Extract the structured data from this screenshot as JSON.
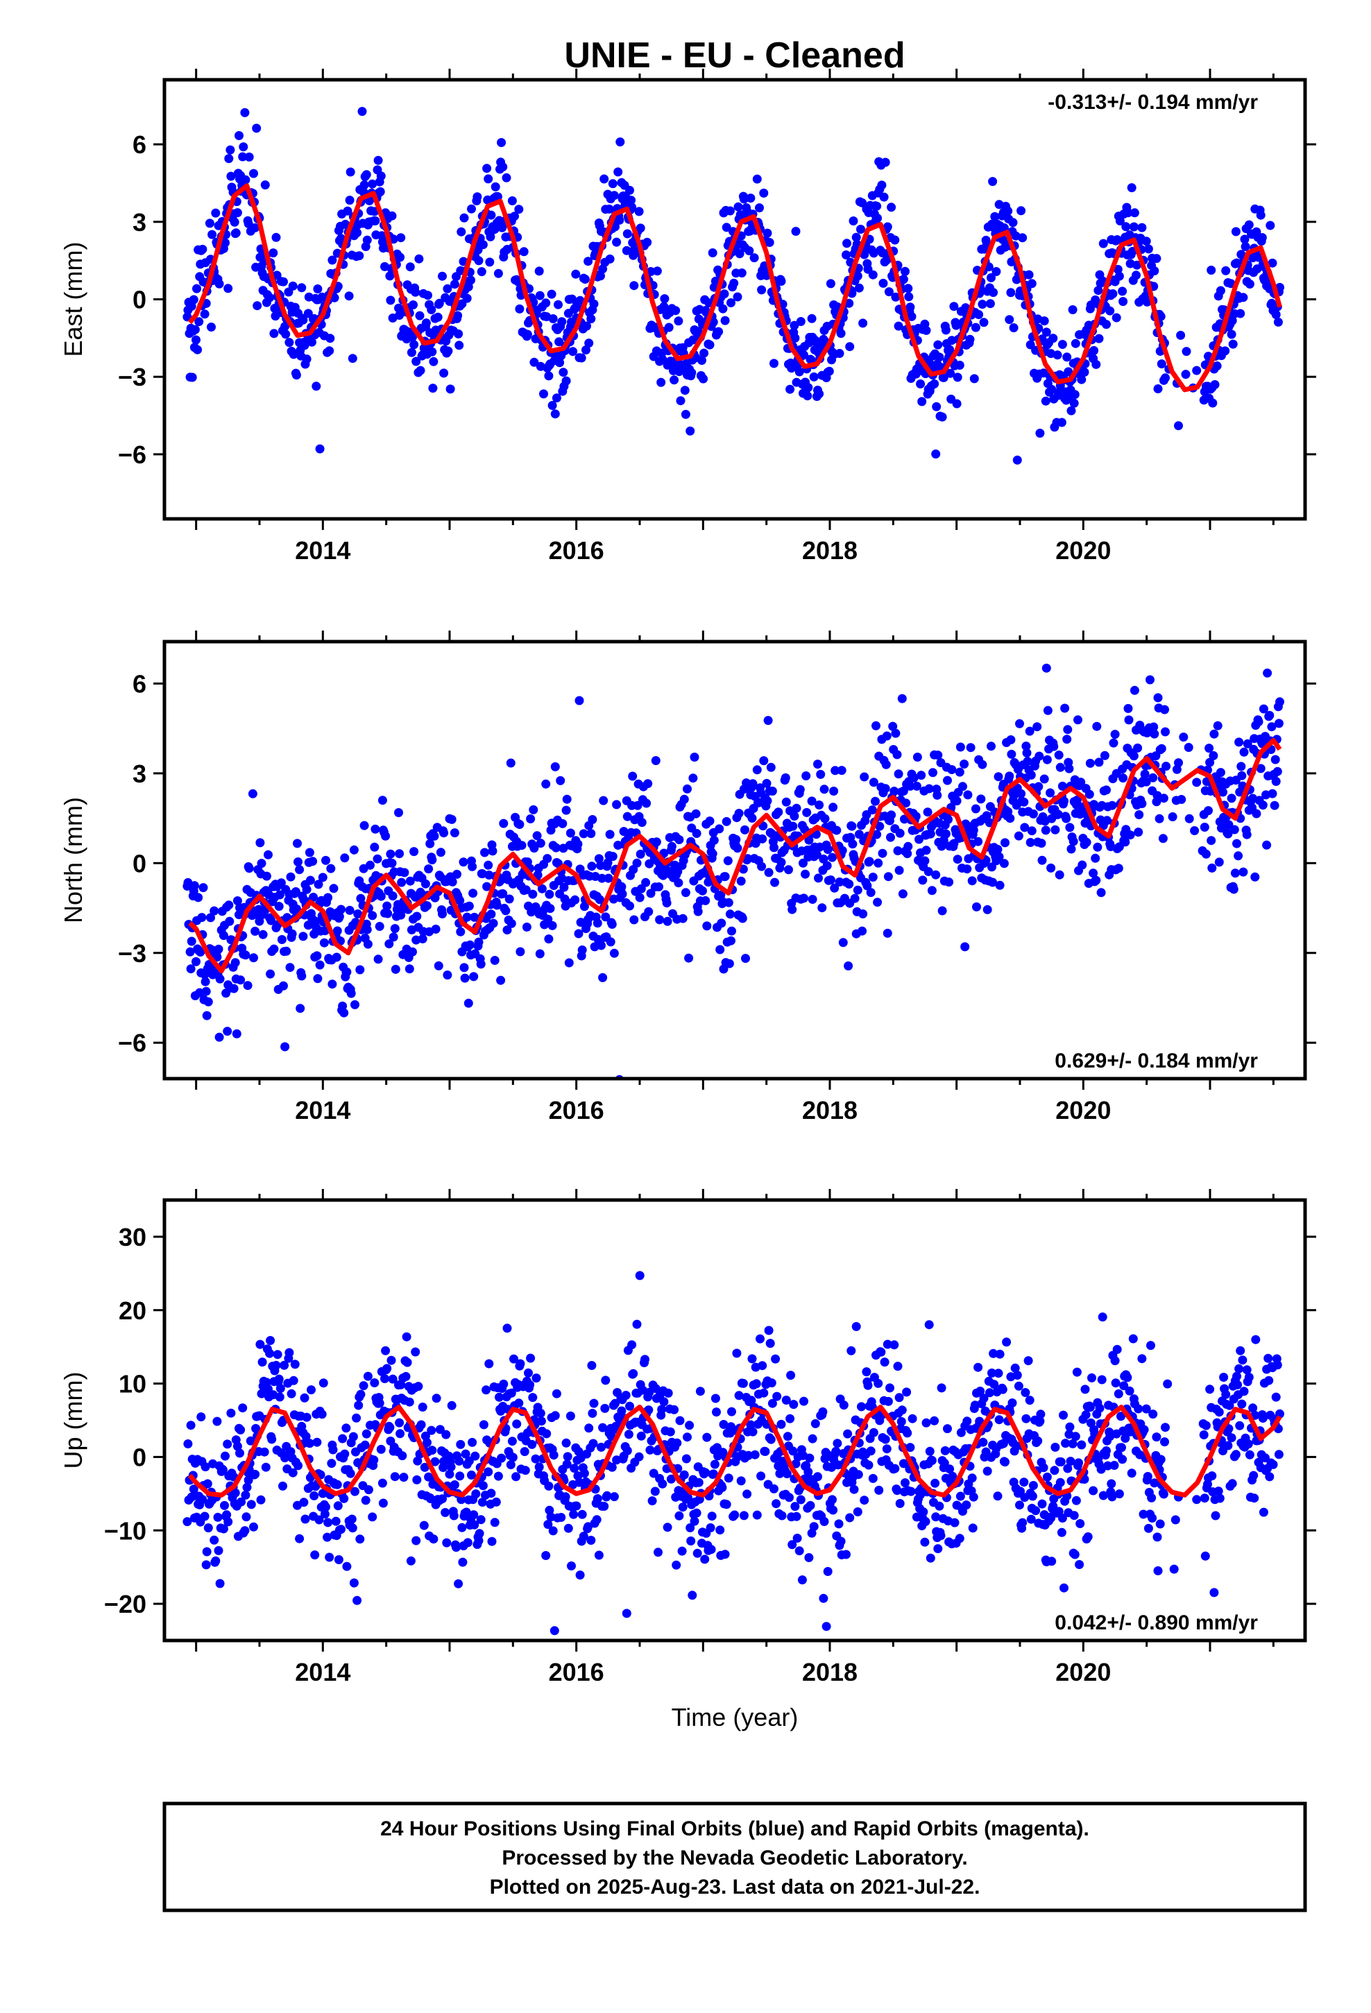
{
  "title": "UNIE  - EU - Cleaned",
  "xlabel": "Time (year)",
  "footer": [
    "24 Hour Positions Using Final Orbits (blue) and Rapid Orbits (magenta).",
    "Processed by the Nevada Geodetic Laboratory.",
    "Plotted on 2025-Aug-23. Last data on 2021-Jul-22."
  ],
  "colors": {
    "points": "#0000ff",
    "fit": "#ff0000",
    "frame": "#000000"
  },
  "chart_data": [
    {
      "type": "scatter",
      "component": "East",
      "ylabel": "East (mm)",
      "xlim": [
        2012.75,
        2021.75
      ],
      "ylim": [
        -8.5,
        8.5
      ],
      "xticks": [
        2014,
        2016,
        2018,
        2020
      ],
      "yticks": [
        6,
        3,
        0,
        -3,
        -6
      ],
      "ytick_labels": [
        "6",
        "3",
        "0",
        "−3",
        "−6"
      ],
      "rate_label": "-0.313+/- 0.194 mm/yr",
      "rate_position": "top-right",
      "data_start": 2012.93,
      "data_end": 2021.55,
      "fit": {
        "x": [
          2012.95,
          2013.0,
          2013.1,
          2013.2,
          2013.3,
          2013.4,
          2013.5,
          2013.6,
          2013.7,
          2013.8,
          2013.9,
          2014.0,
          2014.1,
          2014.2,
          2014.3,
          2014.4,
          2014.5,
          2014.6,
          2014.7,
          2014.8,
          2014.9,
          2015.0,
          2015.1,
          2015.2,
          2015.3,
          2015.4,
          2015.5,
          2015.6,
          2015.7,
          2015.8,
          2015.9,
          2016.0,
          2016.1,
          2016.2,
          2016.3,
          2016.4,
          2016.5,
          2016.6,
          2016.7,
          2016.8,
          2016.9,
          2017.0,
          2017.1,
          2017.2,
          2017.3,
          2017.4,
          2017.5,
          2017.6,
          2017.7,
          2017.8,
          2017.9,
          2018.0,
          2018.1,
          2018.2,
          2018.3,
          2018.4,
          2018.5,
          2018.6,
          2018.7,
          2018.8,
          2018.9,
          2019.0,
          2019.1,
          2019.2,
          2019.3,
          2019.4,
          2019.5,
          2019.6,
          2019.7,
          2019.8,
          2019.9,
          2020.0,
          2020.1,
          2020.2,
          2020.3,
          2020.4,
          2020.5,
          2020.6,
          2020.7,
          2020.8,
          2020.9,
          2021.0,
          2021.1,
          2021.2,
          2021.3,
          2021.4,
          2021.5,
          2021.55
        ],
        "y": [
          -0.9,
          -0.6,
          0.6,
          2.5,
          4.0,
          4.4,
          3.0,
          0.8,
          -0.6,
          -1.4,
          -1.3,
          -0.6,
          0.8,
          2.6,
          3.9,
          4.1,
          2.7,
          0.5,
          -1.0,
          -1.7,
          -1.6,
          -0.8,
          0.6,
          2.3,
          3.6,
          3.8,
          2.4,
          0.2,
          -1.3,
          -2.0,
          -1.9,
          -1.1,
          0.3,
          2.0,
          3.3,
          3.5,
          2.1,
          -0.1,
          -1.6,
          -2.3,
          -2.2,
          -1.4,
          0.0,
          1.7,
          3.0,
          3.2,
          1.8,
          -0.4,
          -1.9,
          -2.6,
          -2.5,
          -1.7,
          -0.3,
          1.4,
          2.7,
          2.9,
          1.5,
          -0.7,
          -2.2,
          -2.9,
          -2.8,
          -2.0,
          -0.6,
          1.1,
          2.4,
          2.6,
          1.2,
          -1.0,
          -2.5,
          -3.2,
          -3.1,
          -2.3,
          -0.9,
          0.8,
          2.1,
          2.3,
          0.9,
          -1.3,
          -2.8,
          -3.5,
          -3.4,
          -2.6,
          -1.2,
          0.5,
          1.8,
          2.0,
          0.6,
          -0.3
        ]
      }
    },
    {
      "type": "scatter",
      "component": "North",
      "ylabel": "North (mm)",
      "xlim": [
        2012.75,
        2021.75
      ],
      "ylim": [
        -7.2,
        7.4
      ],
      "xticks": [
        2014,
        2016,
        2018,
        2020
      ],
      "yticks": [
        6,
        3,
        0,
        -3,
        -6
      ],
      "ytick_labels": [
        "6",
        "3",
        "0",
        "−3",
        "−6"
      ],
      "rate_label": "0.629+/- 0.184 mm/yr",
      "rate_position": "bottom-right",
      "data_start": 2012.93,
      "data_end": 2021.55,
      "fit": {
        "x": [
          2012.95,
          2013.0,
          2013.1,
          2013.2,
          2013.3,
          2013.4,
          2013.5,
          2013.6,
          2013.7,
          2013.8,
          2013.9,
          2014.0,
          2014.1,
          2014.2,
          2014.3,
          2014.4,
          2014.5,
          2014.6,
          2014.7,
          2014.8,
          2014.9,
          2015.0,
          2015.1,
          2015.2,
          2015.3,
          2015.4,
          2015.5,
          2015.6,
          2015.7,
          2015.8,
          2015.9,
          2016.0,
          2016.1,
          2016.2,
          2016.3,
          2016.4,
          2016.5,
          2016.6,
          2016.7,
          2016.8,
          2016.9,
          2017.0,
          2017.1,
          2017.2,
          2017.3,
          2017.4,
          2017.5,
          2017.6,
          2017.7,
          2017.8,
          2017.9,
          2018.0,
          2018.1,
          2018.2,
          2018.3,
          2018.4,
          2018.5,
          2018.6,
          2018.7,
          2018.8,
          2018.9,
          2019.0,
          2019.1,
          2019.2,
          2019.3,
          2019.4,
          2019.5,
          2019.6,
          2019.7,
          2019.8,
          2019.9,
          2020.0,
          2020.1,
          2020.2,
          2020.3,
          2020.4,
          2020.5,
          2020.6,
          2020.7,
          2020.8,
          2020.9,
          2021.0,
          2021.1,
          2021.2,
          2021.3,
          2021.4,
          2021.5,
          2021.55
        ],
        "y": [
          -2.0,
          -2.2,
          -3.1,
          -3.6,
          -2.8,
          -1.6,
          -1.1,
          -1.6,
          -2.1,
          -1.8,
          -1.3,
          -1.6,
          -2.7,
          -3.0,
          -2.0,
          -0.8,
          -0.4,
          -0.9,
          -1.5,
          -1.2,
          -0.8,
          -1.0,
          -2.0,
          -2.3,
          -1.3,
          -0.1,
          0.3,
          -0.2,
          -0.7,
          -0.4,
          -0.1,
          -0.4,
          -1.3,
          -1.6,
          -0.6,
          0.6,
          0.9,
          0.5,
          0.0,
          0.3,
          0.6,
          0.3,
          -0.7,
          -1.0,
          0.1,
          1.2,
          1.6,
          1.1,
          0.6,
          0.9,
          1.2,
          1.0,
          -0.1,
          -0.4,
          0.7,
          1.9,
          2.2,
          1.7,
          1.2,
          1.5,
          1.8,
          1.6,
          0.5,
          0.2,
          1.3,
          2.5,
          2.8,
          2.4,
          1.9,
          2.2,
          2.5,
          2.2,
          1.2,
          0.9,
          2.0,
          3.1,
          3.5,
          3.0,
          2.5,
          2.8,
          3.1,
          2.9,
          1.8,
          1.5,
          2.6,
          3.7,
          4.1,
          3.8
        ]
      }
    },
    {
      "type": "scatter",
      "component": "Up",
      "ylabel": "Up (mm)",
      "xlim": [
        2012.75,
        2021.75
      ],
      "ylim": [
        -25,
        35
      ],
      "xticks": [
        2014,
        2016,
        2018,
        2020
      ],
      "yticks": [
        30,
        20,
        10,
        0,
        -10,
        -20
      ],
      "ytick_labels": [
        "30",
        "20",
        "10",
        "0",
        "−10",
        "−20"
      ],
      "rate_label": "0.042+/- 0.890 mm/yr",
      "rate_position": "bottom-right",
      "data_start": 2012.93,
      "data_end": 2021.55,
      "fit": {
        "x": [
          2012.95,
          2013.0,
          2013.1,
          2013.2,
          2013.3,
          2013.4,
          2013.5,
          2013.6,
          2013.7,
          2013.8,
          2013.9,
          2014.0,
          2014.1,
          2014.2,
          2014.3,
          2014.4,
          2014.5,
          2014.6,
          2014.7,
          2014.8,
          2014.9,
          2015.0,
          2015.1,
          2015.2,
          2015.3,
          2015.4,
          2015.5,
          2015.6,
          2015.7,
          2015.8,
          2015.9,
          2016.0,
          2016.1,
          2016.2,
          2016.3,
          2016.4,
          2016.5,
          2016.6,
          2016.7,
          2016.8,
          2016.9,
          2017.0,
          2017.1,
          2017.2,
          2017.3,
          2017.4,
          2017.5,
          2017.6,
          2017.7,
          2017.8,
          2017.9,
          2018.0,
          2018.1,
          2018.2,
          2018.3,
          2018.4,
          2018.5,
          2018.6,
          2018.7,
          2018.8,
          2018.9,
          2019.0,
          2019.1,
          2019.2,
          2019.3,
          2019.4,
          2019.5,
          2019.6,
          2019.7,
          2019.8,
          2019.9,
          2020.0,
          2020.1,
          2020.2,
          2020.3,
          2020.4,
          2020.5,
          2020.6,
          2020.7,
          2020.8,
          2020.9,
          2021.0,
          2021.1,
          2021.2,
          2021.3,
          2021.4,
          2021.5,
          2021.55
        ],
        "y": [
          -2.5,
          -3.5,
          -5.0,
          -5.2,
          -4.0,
          -1.0,
          3.0,
          6.5,
          6.0,
          2.5,
          -1.5,
          -4.0,
          -5.0,
          -4.5,
          -2.0,
          2.0,
          5.5,
          6.8,
          4.5,
          0.5,
          -3.0,
          -4.8,
          -5.2,
          -3.5,
          0.0,
          4.0,
          6.5,
          6.0,
          2.5,
          -1.5,
          -4.0,
          -5.0,
          -4.5,
          -2.0,
          2.0,
          5.5,
          6.8,
          4.5,
          0.5,
          -3.0,
          -4.8,
          -5.2,
          -3.5,
          0.0,
          4.0,
          6.5,
          6.0,
          2.5,
          -1.5,
          -4.0,
          -5.0,
          -4.5,
          -2.0,
          2.0,
          5.5,
          6.8,
          4.5,
          0.5,
          -3.0,
          -4.8,
          -5.2,
          -3.5,
          0.0,
          4.0,
          6.5,
          6.0,
          2.5,
          -1.5,
          -4.0,
          -5.0,
          -4.5,
          -2.0,
          2.0,
          5.5,
          6.8,
          4.5,
          0.5,
          -3.0,
          -4.8,
          -5.2,
          -3.5,
          0.0,
          4.0,
          6.5,
          6.0,
          2.5,
          4.0,
          5.5
        ]
      }
    }
  ]
}
